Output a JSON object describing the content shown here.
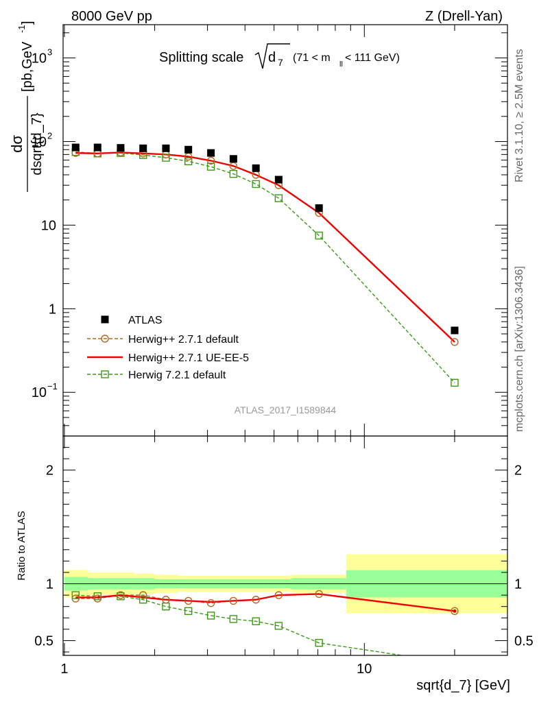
{
  "header": {
    "left": "8000 GeV pp",
    "right": "Z (Drell-Yan)"
  },
  "side_text": {
    "right_top": "Rivet 3.1.10, ≥ 2.5M events",
    "right_bottom": "mcplots.cern.ch [arXiv:1306.3436]"
  },
  "watermark": "ATLAS_2017_I1589844",
  "chart_data": [
    {
      "type": "scatter",
      "panel": "main",
      "title": "Splitting scale",
      "title_sqrt": "d",
      "title_sqrt_sub": "7",
      "title_range": "(71 < m",
      "title_range_sub": "ll",
      "title_range_end": " < 111 GeV)",
      "ylabel_num": "dσ",
      "ylabel_den": "dsqrt{d_7}",
      "ylabel_units": "[pb,GeV",
      "ylabel_units_sup": "-1",
      "ylabel_units_end": "]",
      "xscale": "log",
      "yscale": "log",
      "xlim": [
        0.99,
        30
      ],
      "ylim": [
        0.03,
        2500
      ],
      "yticks": [
        {
          "v": 0.1,
          "base": "10",
          "exp": "−1"
        },
        {
          "v": 1,
          "base": "1",
          "exp": ""
        },
        {
          "v": 10,
          "base": "10",
          "exp": ""
        },
        {
          "v": 100,
          "base": "10",
          "exp": "2"
        },
        {
          "v": 1000,
          "base": "10",
          "exp": "3"
        }
      ],
      "x": [
        1.09,
        1.29,
        1.54,
        1.83,
        2.18,
        2.59,
        3.08,
        3.66,
        4.35,
        5.18,
        7.06,
        20.0
      ],
      "legend_position": "bottom-left",
      "series": [
        {
          "name": "ATLAS",
          "style": "marker-square",
          "color": "#000000",
          "values": [
            85,
            85,
            84,
            83,
            83,
            80,
            73,
            62,
            48,
            35,
            16,
            0.55
          ]
        },
        {
          "name": "Herwig++ 2.7.1 default",
          "style": "dashed-circle",
          "color": "#b5651d",
          "values": [
            73,
            72,
            74,
            72,
            70,
            66,
            59,
            51,
            40,
            30,
            14,
            0.4
          ]
        },
        {
          "name": "Herwig++ 2.7.1 UE-EE-5",
          "style": "solid",
          "color": "#ee0000",
          "values": [
            73,
            72,
            74,
            72,
            70,
            66,
            59,
            51,
            40,
            30,
            14,
            0.4
          ]
        },
        {
          "name": "Herwig 7.2.1 default",
          "style": "dashed-square",
          "color": "#3a9a14",
          "values": [
            75,
            72,
            73,
            69,
            64,
            58,
            50,
            41,
            31,
            21,
            7.5,
            0.13
          ]
        }
      ]
    },
    {
      "type": "line",
      "panel": "ratio",
      "ylabel": "Ratio to ATLAS",
      "xlabel": "sqrt{d_7} [GeV]",
      "xscale": "log",
      "xlim": [
        0.99,
        30
      ],
      "ylim": [
        0.37,
        2.3
      ],
      "yticks": [
        0.5,
        1,
        2
      ],
      "xticks": [
        1,
        10
      ],
      "bands": {
        "edges": [
          1.0,
          1.2,
          1.4,
          1.7,
          2.0,
          2.4,
          2.8,
          3.4,
          4.0,
          4.8,
          5.7,
          8.7,
          30
        ],
        "stat_low": [
          0.94,
          0.95,
          0.95,
          0.95,
          0.96,
          0.96,
          0.96,
          0.96,
          0.96,
          0.96,
          0.95,
          0.88
        ],
        "stat_high": [
          1.06,
          1.05,
          1.05,
          1.05,
          1.04,
          1.04,
          1.04,
          1.04,
          1.04,
          1.04,
          1.05,
          1.12
        ],
        "tot_low": [
          0.88,
          0.9,
          0.9,
          0.91,
          0.92,
          0.93,
          0.93,
          0.93,
          0.93,
          0.93,
          0.92,
          0.74
        ],
        "tot_high": [
          1.12,
          1.1,
          1.1,
          1.09,
          1.08,
          1.07,
          1.07,
          1.07,
          1.07,
          1.07,
          1.08,
          1.26
        ]
      },
      "x": [
        1.09,
        1.29,
        1.54,
        1.83,
        2.18,
        2.59,
        3.08,
        3.66,
        4.35,
        5.18,
        7.06,
        20.0
      ],
      "series": [
        {
          "name": "Herwig++ 2.7.1 default",
          "style": "dashed-circle",
          "color": "#b5651d",
          "values": [
            0.87,
            0.87,
            0.9,
            0.9,
            0.86,
            0.85,
            0.83,
            0.85,
            0.86,
            0.9,
            0.91,
            0.76
          ]
        },
        {
          "name": "Herwig++ 2.7.1 UE-EE-5",
          "style": "solid",
          "color": "#ee0000",
          "values": [
            0.88,
            0.88,
            0.9,
            0.88,
            0.86,
            0.85,
            0.84,
            0.85,
            0.86,
            0.9,
            0.91,
            0.76
          ]
        },
        {
          "name": "Herwig 7.2.1 default",
          "style": "dashed-square",
          "color": "#3a9a14",
          "values": [
            0.9,
            0.89,
            0.89,
            0.86,
            0.8,
            0.76,
            0.72,
            0.69,
            0.67,
            0.63,
            0.48,
            0.3
          ]
        }
      ]
    }
  ]
}
